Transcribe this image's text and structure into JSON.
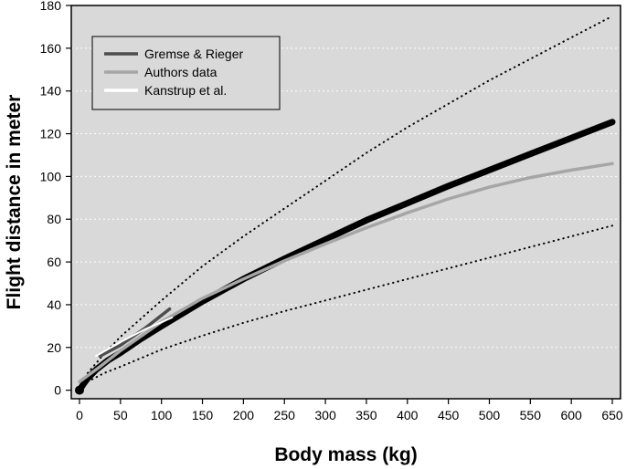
{
  "chart_data": {
    "type": "line",
    "title": "",
    "xlabel": "Body mass (kg)",
    "ylabel": "Flight distance in meter",
    "xlim": [
      -10,
      660
    ],
    "ylim": [
      -4,
      180
    ],
    "x_ticks": [
      0,
      50,
      100,
      150,
      200,
      250,
      300,
      350,
      400,
      450,
      500,
      550,
      600,
      650
    ],
    "y_ticks": [
      0,
      20,
      40,
      60,
      80,
      100,
      120,
      140,
      160,
      180
    ],
    "grid": "horizontal dotted white",
    "background": "#d9d9d9",
    "legend_position": "top-left",
    "legend": [
      {
        "label": "Gremse & Rieger",
        "color": "#4d4d4d"
      },
      {
        "label": "Authors data",
        "color": "#a6a6a6"
      },
      {
        "label": "Kanstrup et al.",
        "color": "#ffffff"
      }
    ],
    "series": [
      {
        "name": "Gremse & Rieger",
        "color": "#4d4d4d",
        "style": "solid",
        "points": [
          [
            25,
            16
          ],
          [
            50,
            21
          ],
          [
            80,
            29
          ],
          [
            110,
            38
          ]
        ]
      },
      {
        "name": "Authors data",
        "color": "#a6a6a6",
        "style": "solid",
        "points": [
          [
            0,
            4
          ],
          [
            25,
            11
          ],
          [
            50,
            18.5
          ],
          [
            100,
            32
          ],
          [
            150,
            43
          ],
          [
            200,
            52
          ],
          [
            250,
            60.5
          ],
          [
            300,
            68.5
          ],
          [
            350,
            76
          ],
          [
            400,
            83
          ],
          [
            450,
            89.5
          ],
          [
            500,
            95
          ],
          [
            550,
            99.5
          ],
          [
            600,
            103
          ],
          [
            650,
            106
          ]
        ]
      },
      {
        "name": "Kanstrup et al.",
        "color": "#ffffff",
        "style": "solid",
        "points": [
          [
            20,
            16
          ],
          [
            50,
            22.5
          ],
          [
            80,
            28.5
          ],
          [
            113,
            34
          ]
        ]
      },
      {
        "name": "fit",
        "color": "#000000",
        "style": "thick",
        "points": [
          [
            0,
            0
          ],
          [
            5,
            3
          ],
          [
            10,
            5.5
          ],
          [
            20,
            9.5
          ],
          [
            35,
            14
          ],
          [
            50,
            17.5
          ],
          [
            75,
            24
          ],
          [
            100,
            30
          ],
          [
            150,
            41.5
          ],
          [
            200,
            52
          ],
          [
            250,
            61.5
          ],
          [
            300,
            70.5
          ],
          [
            350,
            79.5
          ],
          [
            400,
            87.5
          ],
          [
            450,
            95.5
          ],
          [
            500,
            103
          ],
          [
            550,
            110.5
          ],
          [
            600,
            118
          ],
          [
            650,
            125.5
          ]
        ]
      },
      {
        "name": "upper bound",
        "color": "#000000",
        "style": "dotted",
        "points": [
          [
            10,
            8
          ],
          [
            30,
            17
          ],
          [
            50,
            25
          ],
          [
            100,
            42
          ],
          [
            150,
            58
          ],
          [
            200,
            72
          ],
          [
            250,
            85
          ],
          [
            300,
            98
          ],
          [
            350,
            111
          ],
          [
            400,
            123
          ],
          [
            450,
            134
          ],
          [
            500,
            145
          ],
          [
            550,
            155
          ],
          [
            600,
            165
          ],
          [
            650,
            175
          ]
        ]
      },
      {
        "name": "lower bound",
        "color": "#000000",
        "style": "dotted",
        "points": [
          [
            10,
            4
          ],
          [
            30,
            8
          ],
          [
            50,
            11
          ],
          [
            100,
            19
          ],
          [
            150,
            25.5
          ],
          [
            200,
            31.5
          ],
          [
            250,
            37
          ],
          [
            300,
            42
          ],
          [
            350,
            47
          ],
          [
            400,
            52
          ],
          [
            450,
            57
          ],
          [
            500,
            62
          ],
          [
            550,
            67
          ],
          [
            600,
            72
          ],
          [
            650,
            77
          ]
        ]
      }
    ]
  }
}
